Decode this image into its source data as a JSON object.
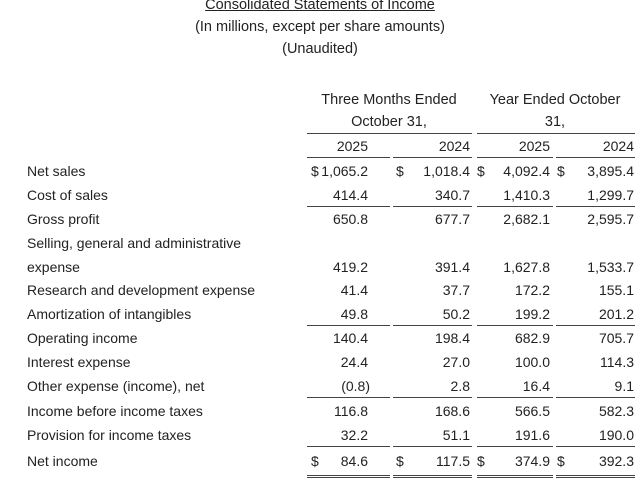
{
  "header": {
    "title": "Consolidated Statements of Income",
    "subtitle": "(In millions, except per share amounts)",
    "note": "(Unaudited)"
  },
  "columns": {
    "group1_line1": "Three Months Ended",
    "group1_line2": "October 31,",
    "group2_line1": "Year Ended October",
    "group2_line2": "31,",
    "years": [
      "2025",
      "2024",
      "2025",
      "2024"
    ],
    "currency": "$"
  },
  "rows": [
    {
      "label": "Net sales",
      "values": [
        "1,065.2",
        "1,018.4",
        "4,092.4",
        "3,895.4"
      ]
    },
    {
      "label": "Cost of sales",
      "values": [
        "414.4",
        "340.7",
        "1,410.3",
        "1,299.7"
      ]
    },
    {
      "label": "Gross profit",
      "values": [
        "650.8",
        "677.7",
        "2,682.1",
        "2,595.7"
      ]
    },
    {
      "label": "Selling, general and administrative",
      "values": [
        "",
        "",
        "",
        ""
      ]
    },
    {
      "label": "expense",
      "values": [
        "419.2",
        "391.4",
        "1,627.8",
        "1,533.7"
      ]
    },
    {
      "label": "Research and development expense",
      "values": [
        "41.4",
        "37.7",
        "172.2",
        "155.1"
      ]
    },
    {
      "label": "Amortization of intangibles",
      "values": [
        "49.8",
        "50.2",
        "199.2",
        "201.2"
      ]
    },
    {
      "label": "Operating income",
      "values": [
        "140.4",
        "198.4",
        "682.9",
        "705.7"
      ]
    },
    {
      "label": "Interest expense",
      "values": [
        "24.4",
        "27.0",
        "100.0",
        "114.3"
      ]
    },
    {
      "label": "Other expense (income), net",
      "values": [
        "(0.8)",
        "2.8",
        "16.4",
        "9.1"
      ]
    },
    {
      "label": "Income before income taxes",
      "values": [
        "116.8",
        "168.6",
        "566.5",
        "582.3"
      ]
    },
    {
      "label": "Provision for income taxes",
      "values": [
        "32.2",
        "51.1",
        "191.6",
        "190.0"
      ]
    },
    {
      "label": "Net income",
      "values": [
        "84.6",
        "117.5",
        "374.9",
        "392.3"
      ]
    }
  ]
}
